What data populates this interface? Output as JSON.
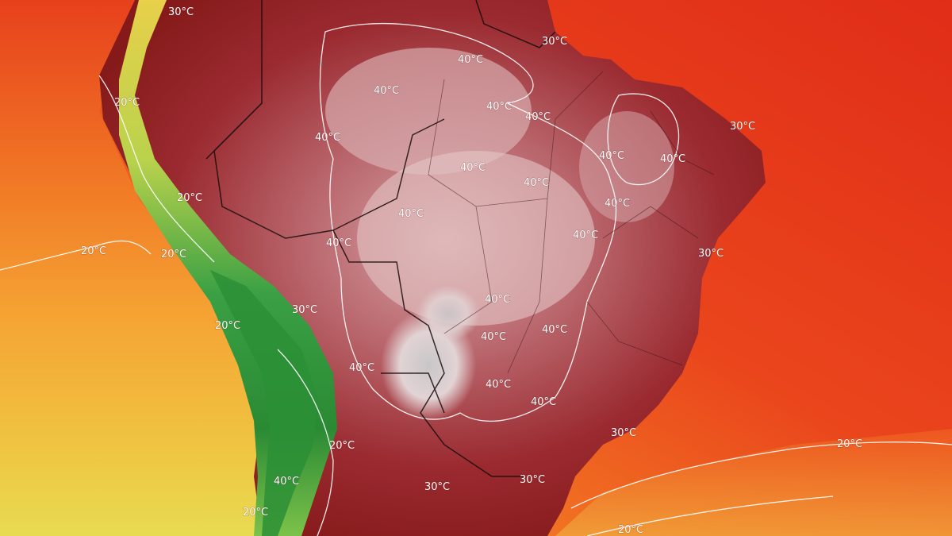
{
  "map": {
    "colors": {
      "ocean_hot": "#e4331b",
      "ocean_warm": "#ef5a1e",
      "ocean_mild": "#f58a2a",
      "ocean_cool": "#f3b032",
      "ocean_cold": "#e9d24a",
      "land_hot": "#8c1a1a",
      "land_very_hot": "#a8303a",
      "land_extreme": "#d9a8ad",
      "land_peak": "#f0dede",
      "andes_green": "#2f9a3a",
      "andes_light": "#b9d24c",
      "contour": "#ffffff",
      "border": "#1a0c0c"
    },
    "isotherm_labels": [
      {
        "id": "l-30-nw",
        "text": "30°C"
      },
      {
        "id": "l-30-n",
        "text": "30°C"
      },
      {
        "id": "l-30-ne",
        "text": "30°C"
      },
      {
        "id": "l-30-e",
        "text": "30°C"
      },
      {
        "id": "l-30-se",
        "text": "30°C"
      },
      {
        "id": "l-30-s1",
        "text": "30°C"
      },
      {
        "id": "l-30-s2",
        "text": "30°C"
      },
      {
        "id": "l-30-w",
        "text": "30°C"
      },
      {
        "id": "l-20-peru",
        "text": "20°C"
      },
      {
        "id": "l-20-pac",
        "text": "20°C"
      },
      {
        "id": "l-20-andes1",
        "text": "20°C"
      },
      {
        "id": "l-20-andes2",
        "text": "20°C"
      },
      {
        "id": "l-20-andes3",
        "text": "20°C"
      },
      {
        "id": "l-20-arg",
        "text": "20°C"
      },
      {
        "id": "l-20-chile",
        "text": "20°C"
      },
      {
        "id": "l-20-se",
        "text": "20°C"
      },
      {
        "id": "l-20-sse",
        "text": "20°C"
      },
      {
        "id": "l-40-1",
        "text": "40°C"
      },
      {
        "id": "l-40-2",
        "text": "40°C"
      },
      {
        "id": "l-40-3",
        "text": "40°C"
      },
      {
        "id": "l-40-4",
        "text": "40°C"
      },
      {
        "id": "l-40-5",
        "text": "40°C"
      },
      {
        "id": "l-40-6",
        "text": "40°C"
      },
      {
        "id": "l-40-7",
        "text": "40°C"
      },
      {
        "id": "l-40-8",
        "text": "40°C"
      },
      {
        "id": "l-40-9",
        "text": "40°C"
      },
      {
        "id": "l-40-10",
        "text": "40°C"
      },
      {
        "id": "l-40-11",
        "text": "40°C"
      },
      {
        "id": "l-40-12",
        "text": "40°C"
      },
      {
        "id": "l-40-13",
        "text": "40°C"
      },
      {
        "id": "l-40-14",
        "text": "40°C"
      },
      {
        "id": "l-40-15",
        "text": "40°C"
      },
      {
        "id": "l-40-16",
        "text": "40°C"
      },
      {
        "id": "l-40-17",
        "text": "40°C"
      },
      {
        "id": "l-40-18",
        "text": "40°C"
      },
      {
        "id": "l-40-19",
        "text": "40°C"
      },
      {
        "id": "l-40-20",
        "text": "40°C"
      }
    ]
  }
}
